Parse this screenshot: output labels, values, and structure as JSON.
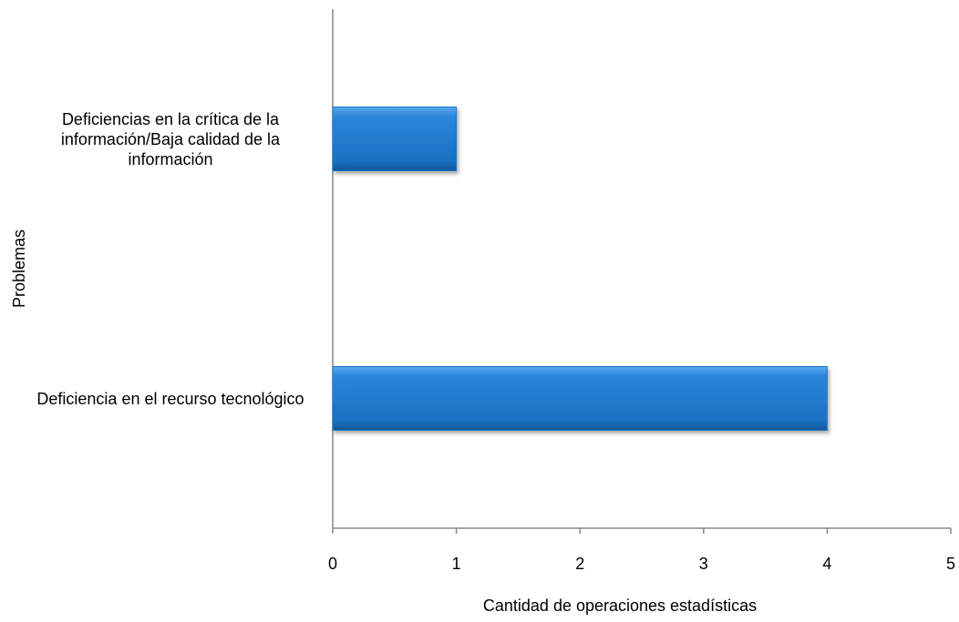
{
  "chart_data": {
    "type": "bar",
    "orientation": "horizontal",
    "categories": [
      "Deficiencias en la crítica de la información/Baja calidad de la información",
      "Deficiencia en el recurso tecnológico"
    ],
    "values": [
      1,
      4
    ],
    "color": "#1f77c9",
    "xlim": [
      0,
      5
    ],
    "xticks": [
      0,
      1,
      2,
      3,
      4,
      5
    ],
    "xlabel": "Cantidad de operaciones estadísticas",
    "ylabel": "Problemas"
  }
}
